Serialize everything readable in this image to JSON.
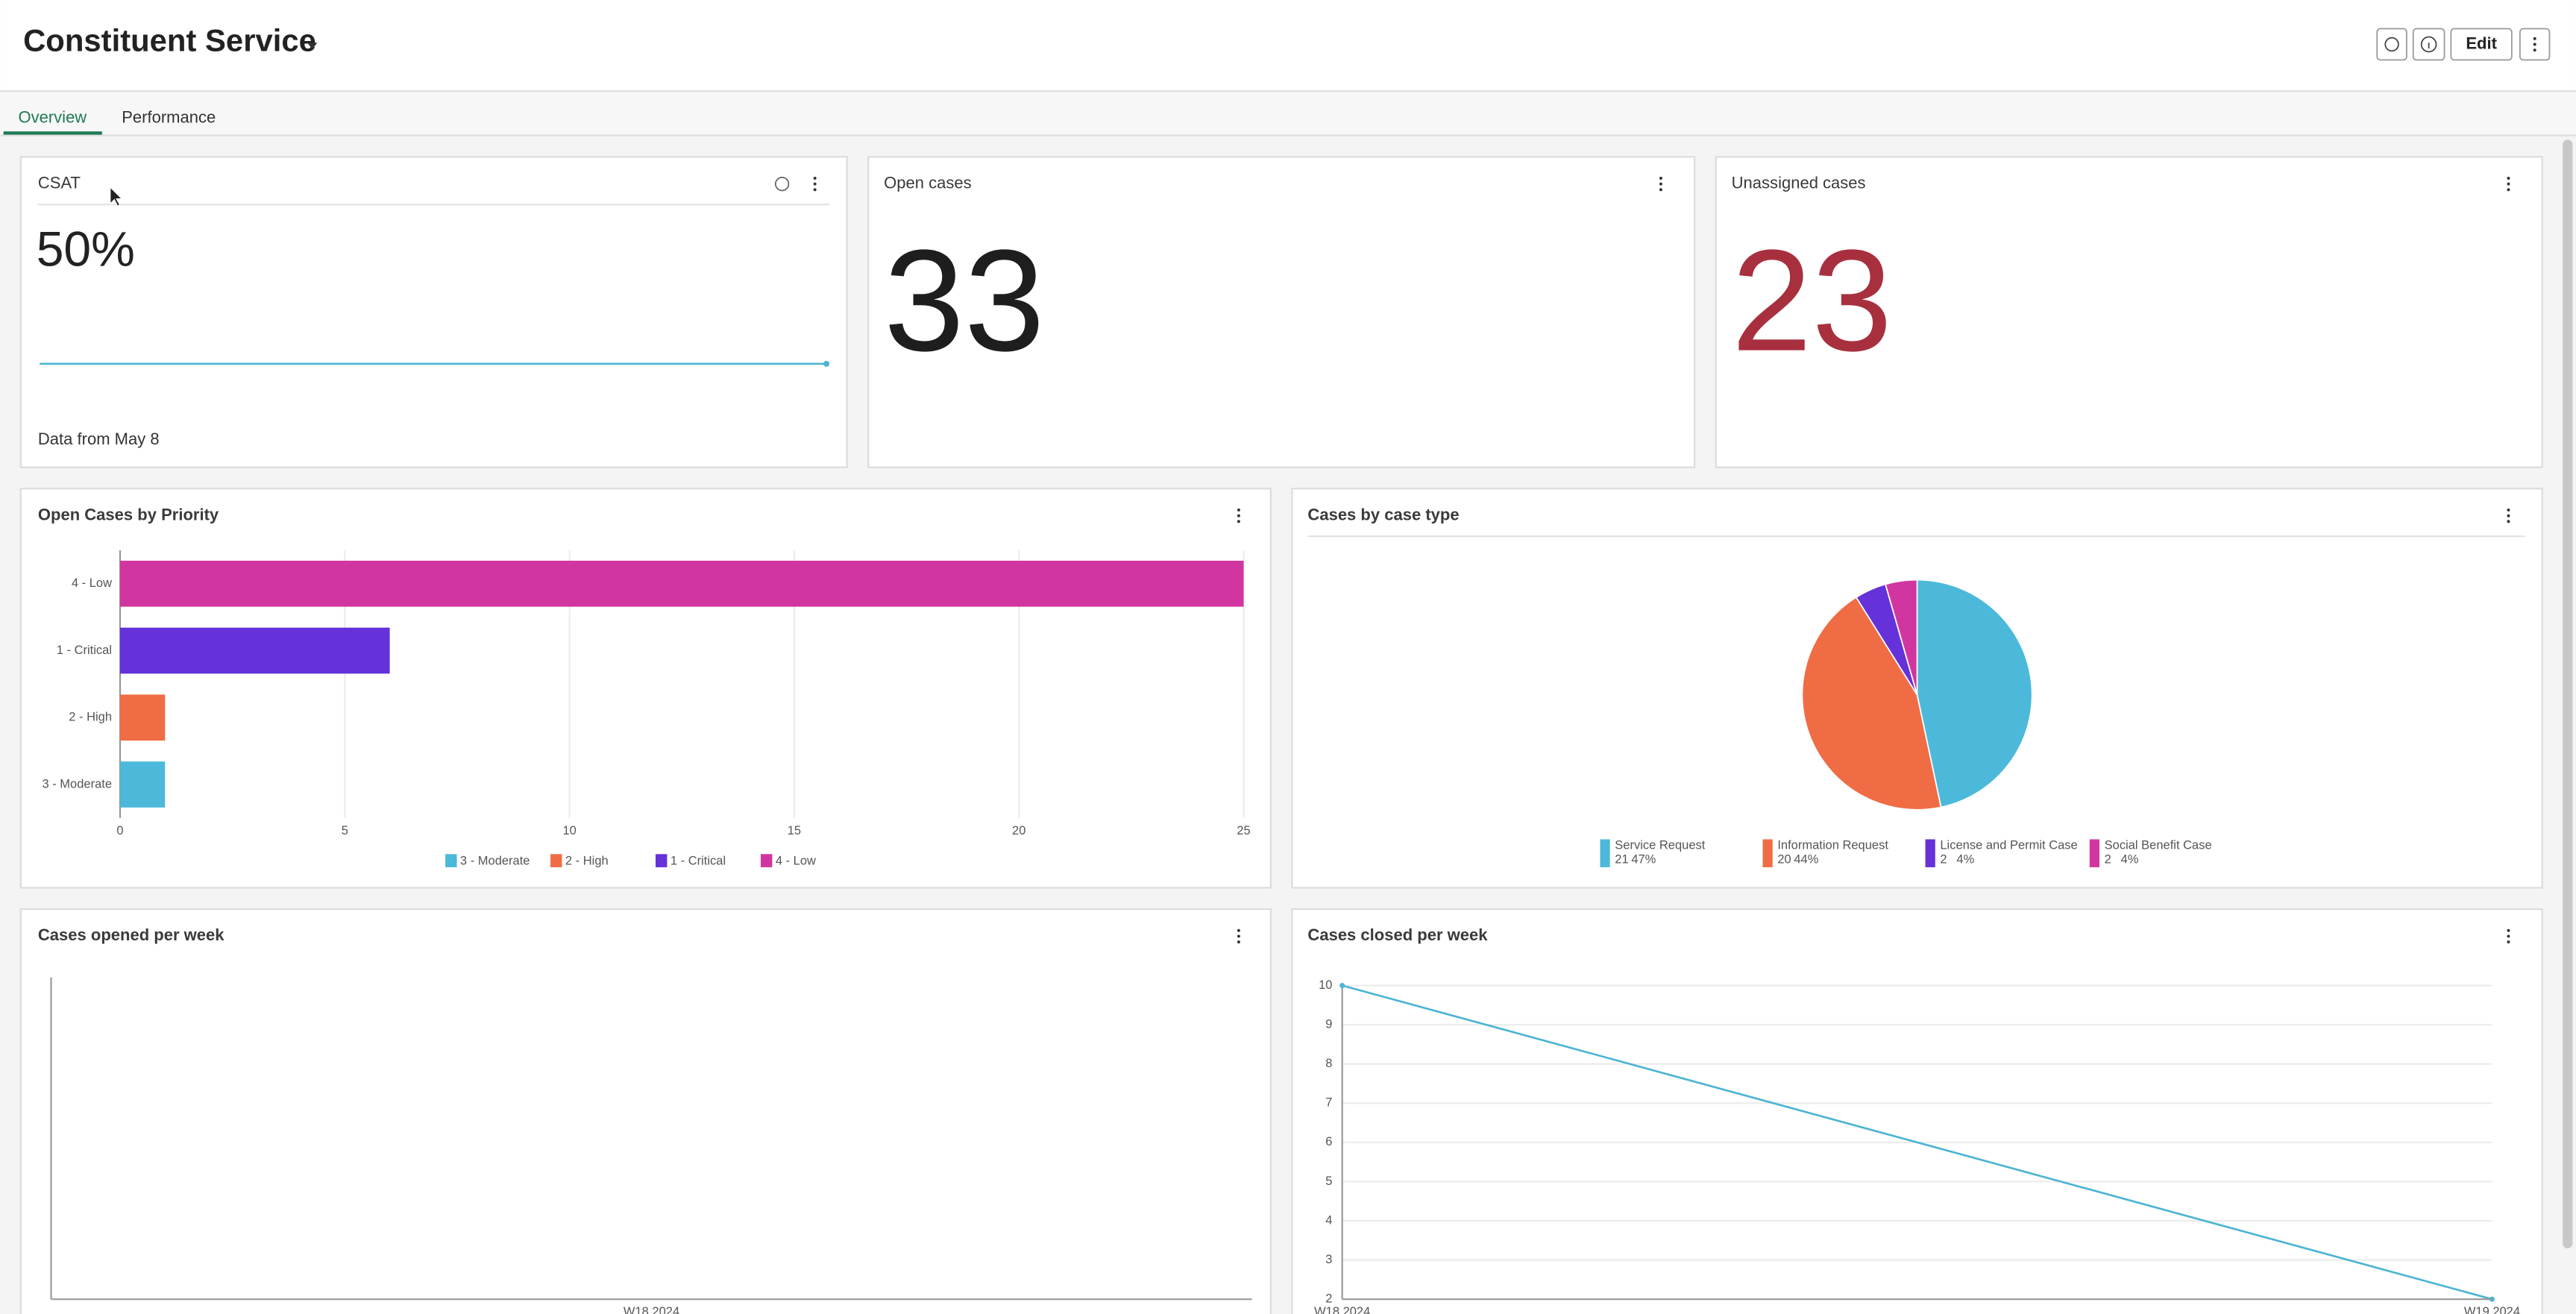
{
  "header": {
    "title": "Constituent Service",
    "edit_button": "Edit"
  },
  "tabs": [
    "Overview",
    "Performance"
  ],
  "csat": {
    "title": "CSAT",
    "value": "50%",
    "footer": "Data from May 8"
  },
  "open_cases": {
    "title": "Open cases",
    "value": 33
  },
  "unassigned_cases": {
    "title": "Unassigned cases",
    "value": 23
  },
  "open_cases_by_priority": {
    "type": "bar",
    "orientation": "horizontal",
    "title": "Open Cases by Priority",
    "categories": [
      "3 - Moderate",
      "2 - High",
      "1 - Critical",
      "4 - Low"
    ],
    "values": [
      1,
      1,
      6,
      25
    ],
    "colors": [
      "#4cb9da",
      "#f06c45",
      "#6531d8",
      "#d136a0"
    ],
    "xlim": [
      0,
      25
    ],
    "xticks": [
      0,
      5,
      10,
      15,
      20,
      25
    ],
    "grid": true
  },
  "cases_by_case_type": {
    "type": "pie",
    "title": "Cases by case type",
    "categories": [
      "Service Request",
      "Information Request",
      "License and Permit Case",
      "Social Benefit Case"
    ],
    "values": [
      21,
      20,
      2,
      2
    ],
    "percent_labels": [
      "47%",
      "44%",
      "4%",
      "4%"
    ],
    "colors": [
      "#4cb9da",
      "#f06c45",
      "#6531d8",
      "#d136a0"
    ]
  },
  "cases_opened_per_week": {
    "type": "line",
    "title": "Cases opened per week",
    "x": [
      "W18 2024"
    ],
    "values": [
      null
    ]
  },
  "cases_closed_per_week": {
    "type": "line",
    "title": "Cases closed per week",
    "x": [
      "W18 2024",
      "W19 2024"
    ],
    "values": [
      10,
      2
    ],
    "color": "#4cb4d4",
    "ylim": [
      2,
      10
    ],
    "yticks": [
      2,
      3,
      4,
      5,
      6,
      7,
      8,
      9,
      10
    ],
    "grid": true
  }
}
